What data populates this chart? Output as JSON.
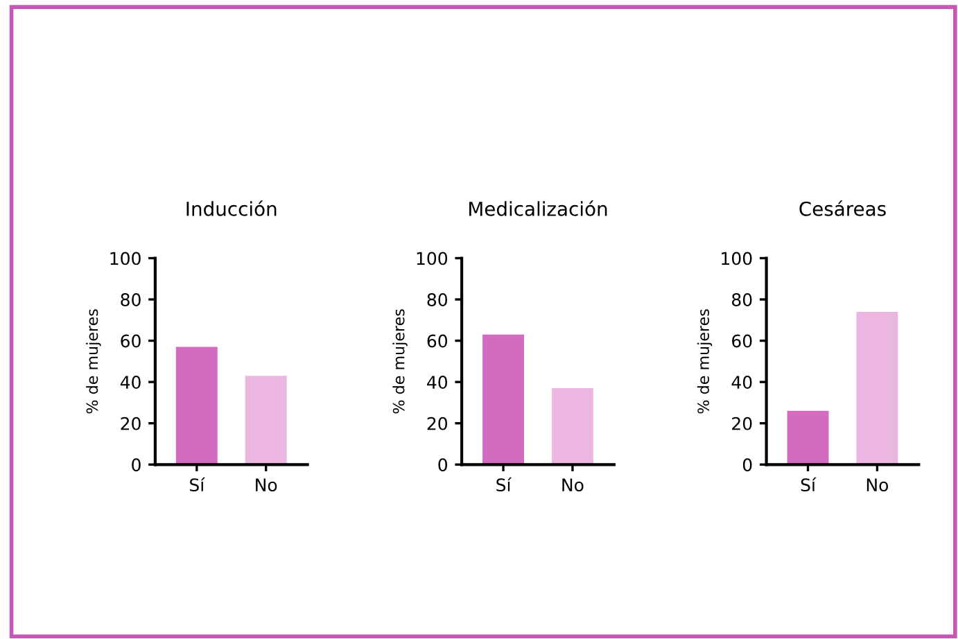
{
  "chart_data": [
    {
      "type": "bar",
      "title": "Inducción",
      "ylabel": "% de mujeres",
      "categories": [
        "Sí",
        "No"
      ],
      "values": [
        57,
        43
      ],
      "colors": [
        "#d36bbe",
        "#ebb6e0"
      ],
      "ylim": [
        0,
        100
      ],
      "yticks": [
        0,
        20,
        40,
        60,
        80,
        100
      ],
      "grid": false,
      "legend": false
    },
    {
      "type": "bar",
      "title": "Medicalización",
      "ylabel": "% de mujeres",
      "categories": [
        "Sí",
        "No"
      ],
      "values": [
        63,
        37
      ],
      "colors": [
        "#d36bbe",
        "#ebb6e0"
      ],
      "ylim": [
        0,
        100
      ],
      "yticks": [
        0,
        20,
        40,
        60,
        80,
        100
      ],
      "grid": false,
      "legend": false
    },
    {
      "type": "bar",
      "title": "Cesáreas",
      "ylabel": "% de mujeres",
      "categories": [
        "Sí",
        "No"
      ],
      "values": [
        26,
        74
      ],
      "colors": [
        "#d36bbe",
        "#ebb6e0"
      ],
      "ylim": [
        0,
        100
      ],
      "yticks": [
        0,
        20,
        40,
        60,
        80,
        100
      ],
      "grid": false,
      "legend": false
    }
  ]
}
